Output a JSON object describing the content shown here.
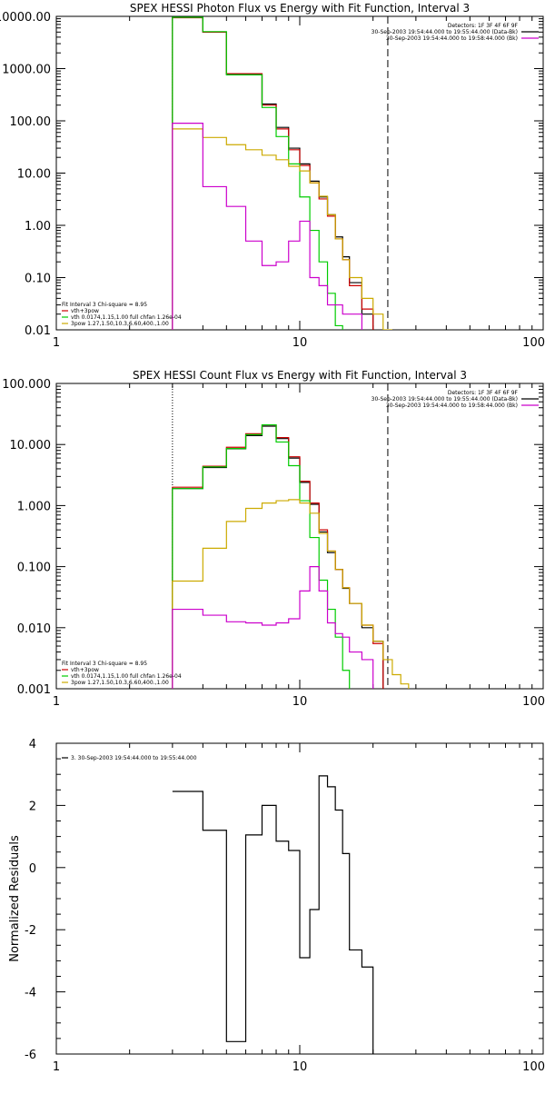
{
  "chart_data": [
    {
      "type": "line",
      "title": "SPEX HESSI Photon Flux vs Energy with Fit Function, Interval 3",
      "xlabel": "",
      "ylabel": "",
      "xscale": "log",
      "yscale": "log",
      "xlim": [
        1,
        100
      ],
      "ylim": [
        0.01,
        10000
      ],
      "xticks": [
        1,
        10,
        100
      ],
      "xtick_labels": [
        "1",
        "10",
        "100"
      ],
      "yticks": [
        0.01,
        0.1,
        1,
        10,
        100,
        1000,
        10000
      ],
      "ytick_labels": [
        "0.01",
        "0.10",
        "1.00",
        "10.00",
        "100.00",
        "1000.00",
        "10000.00"
      ],
      "vlines": [
        {
          "x": 3.0,
          "style": "dotted",
          "color": "#000000"
        },
        {
          "x": 23.0,
          "style": "dashed",
          "color": "#000000"
        }
      ],
      "legend_topright": {
        "position": "top-right",
        "lines": [
          {
            "text": "Detectors: 1F 3F 4F 6F 9F",
            "color": ""
          },
          {
            "text": "30-Sep-2003 19:54:44.000 to 19:55:44.000 (Data-Bk)",
            "color": "#000000"
          },
          {
            "text": "30-Sep-2003 19:54:44.000 to 19:58:44.000 (Bk)",
            "color": "#cc00cc"
          }
        ]
      },
      "legend_bottomleft": {
        "position": "bottom-left",
        "lines": [
          {
            "text": "Fit Interval 3   Chi-square = 8.95",
            "color": ""
          },
          {
            "text": "vth+3pow",
            "color": "#cc0000"
          },
          {
            "text": "vth 0.0174,1.15,1.00  full chfan 1.26e-04",
            "color": "#00cc00"
          },
          {
            "text": "3pow 1.27,1.50,10.3,6.60,400.,1.00",
            "color": "#ccaa00"
          }
        ]
      },
      "x_edges": [
        3,
        4,
        5,
        6,
        7,
        8,
        9,
        10,
        11,
        12,
        13,
        14,
        15,
        16,
        18,
        20,
        22,
        24,
        26,
        28,
        30
      ],
      "series": [
        {
          "name": "Data-Bk",
          "color": "#000000",
          "values": [
            9500,
            5000,
            780,
            780,
            210,
            75,
            30,
            15,
            7,
            3.5,
            1.6,
            0.6,
            0.25,
            0.08,
            0.02,
            null,
            null,
            null,
            null,
            null
          ]
        },
        {
          "name": "vth+3pow",
          "color": "#cc0000",
          "values": [
            9400,
            5000,
            800,
            800,
            200,
            70,
            28,
            14,
            6.5,
            3.2,
            1.5,
            0.55,
            0.22,
            0.07,
            0.025,
            null,
            null,
            null,
            null,
            null
          ]
        },
        {
          "name": "vth",
          "color": "#00cc00",
          "values": [
            9600,
            5100,
            760,
            760,
            180,
            50,
            15,
            3.5,
            0.8,
            0.2,
            0.05,
            0.012,
            null,
            null,
            null,
            null,
            null,
            null,
            null,
            null
          ]
        },
        {
          "name": "3pow",
          "color": "#ccaa00",
          "values": [
            70,
            48,
            35,
            28,
            22,
            18,
            13.5,
            11,
            6.5,
            3.6,
            1.6,
            0.55,
            0.22,
            0.1,
            0.04,
            0.02,
            0.01,
            null,
            null,
            null
          ]
        },
        {
          "name": "Bk",
          "color": "#cc00cc",
          "values": [
            90,
            5.5,
            2.3,
            0.5,
            0.17,
            0.2,
            0.5,
            1.2,
            0.1,
            0.07,
            0.03,
            0.03,
            0.02,
            0.02,
            null,
            null,
            null,
            null,
            null,
            null
          ]
        }
      ]
    },
    {
      "type": "line",
      "title": "SPEX HESSI Count Flux vs Energy with Fit Function, Interval 3",
      "xlabel": "",
      "ylabel": "",
      "xscale": "log",
      "yscale": "log",
      "xlim": [
        1,
        100
      ],
      "ylim": [
        0.001,
        100
      ],
      "xticks": [
        1,
        10,
        100
      ],
      "xtick_labels": [
        "1",
        "10",
        "100"
      ],
      "yticks": [
        0.001,
        0.01,
        0.1,
        1,
        10,
        100
      ],
      "ytick_labels": [
        "0.001",
        "0.010",
        "0.100",
        "1.000",
        "10.000",
        "100.000"
      ],
      "vlines": [
        {
          "x": 3.0,
          "style": "dotted",
          "color": "#000000"
        },
        {
          "x": 23.0,
          "style": "dashed",
          "color": "#000000"
        }
      ],
      "legend_topright": {
        "position": "top-right",
        "lines": [
          {
            "text": "Detectors: 1F 3F 4F 6F 9F",
            "color": ""
          },
          {
            "text": "30-Sep-2003 19:54:44.000 to 19:55:44.000 (Data-Bk)",
            "color": "#000000"
          },
          {
            "text": "30-Sep-2003 19:54:44.000 to 19:58:44.000 (Bk)",
            "color": "#cc00cc"
          }
        ]
      },
      "legend_bottomleft": {
        "position": "bottom-left",
        "lines": [
          {
            "text": "Fit Interval 3   Chi-square = 8.95",
            "color": ""
          },
          {
            "text": "vth+3pow",
            "color": "#cc0000"
          },
          {
            "text": "vth 0.0174,1.15,1.00  full chfan 1.26e-04",
            "color": "#00cc00"
          },
          {
            "text": "3pow 1.27,1.50,10.3,6.60,400.,1.00",
            "color": "#ccaa00"
          }
        ]
      },
      "x_edges": [
        3,
        4,
        5,
        6,
        7,
        8,
        9,
        10,
        11,
        12,
        13,
        14,
        15,
        16,
        18,
        20,
        22,
        24,
        26,
        28,
        30
      ],
      "series": [
        {
          "name": "Data-Bk",
          "color": "#000000",
          "values": [
            1.9,
            4.2,
            8.5,
            14,
            20,
            12.5,
            6,
            2.4,
            1.05,
            0.37,
            0.17,
            0.09,
            0.044,
            0.025,
            0.01,
            0.006,
            null,
            null,
            null,
            null
          ]
        },
        {
          "name": "vth+3pow",
          "color": "#cc0000",
          "values": [
            2.0,
            4.4,
            9.0,
            15,
            21,
            13,
            6.3,
            2.5,
            1.1,
            0.4,
            0.18,
            0.09,
            0.045,
            0.025,
            0.011,
            0.0055,
            null,
            null,
            null,
            null
          ]
        },
        {
          "name": "vth",
          "color": "#00cc00",
          "values": [
            1.9,
            4.3,
            8.6,
            14.5,
            21,
            11,
            4.5,
            1.2,
            0.3,
            0.06,
            0.02,
            0.007,
            0.002,
            null,
            null,
            null,
            null,
            null,
            null,
            null
          ]
        },
        {
          "name": "3pow",
          "color": "#ccaa00",
          "values": [
            0.058,
            0.2,
            0.55,
            0.9,
            1.1,
            1.2,
            1.25,
            1.1,
            0.75,
            0.35,
            0.18,
            0.09,
            0.045,
            0.025,
            0.011,
            0.006,
            0.003,
            0.0017,
            0.0012,
            null
          ]
        },
        {
          "name": "Bk",
          "color": "#cc00cc",
          "values": [
            0.02,
            0.016,
            0.0125,
            0.012,
            0.011,
            0.012,
            0.014,
            0.04,
            0.1,
            0.04,
            0.012,
            0.008,
            0.007,
            0.004,
            0.003,
            null,
            null,
            null,
            null,
            null
          ]
        }
      ]
    },
    {
      "type": "line",
      "title": "",
      "xlabel": "",
      "ylabel": "Normalized Residuals",
      "xscale": "log",
      "yscale": "linear",
      "xlim": [
        1,
        100
      ],
      "ylim": [
        -6,
        4
      ],
      "xticks": [
        1,
        10,
        100
      ],
      "xtick_labels": [
        "1",
        "10",
        "100"
      ],
      "yticks": [
        -6,
        -4,
        -2,
        0,
        2,
        4
      ],
      "ytick_labels": [
        "-6",
        "-4",
        "-2",
        "0",
        "2",
        "4"
      ],
      "legend_topleft": {
        "position": "top-left",
        "lines": [
          {
            "text": "3. 30-Sep-2003 19:54:44.000 to 19:55:44.000",
            "color": "#000000"
          }
        ]
      },
      "x_edges": [
        3,
        4,
        5,
        6,
        7,
        8,
        9,
        10,
        11,
        12,
        13,
        14,
        15,
        16,
        18,
        20,
        22,
        24
      ],
      "series": [
        {
          "name": "3. 30-Sep-2003 19:54:44.000 to 19:55:44.000",
          "color": "#000000",
          "values": [
            2.45,
            1.2,
            -5.6,
            1.05,
            2.0,
            0.85,
            0.55,
            -2.9,
            -1.35,
            2.95,
            2.6,
            1.85,
            0.45,
            -2.65,
            -3.2,
            null,
            null
          ]
        }
      ]
    }
  ]
}
